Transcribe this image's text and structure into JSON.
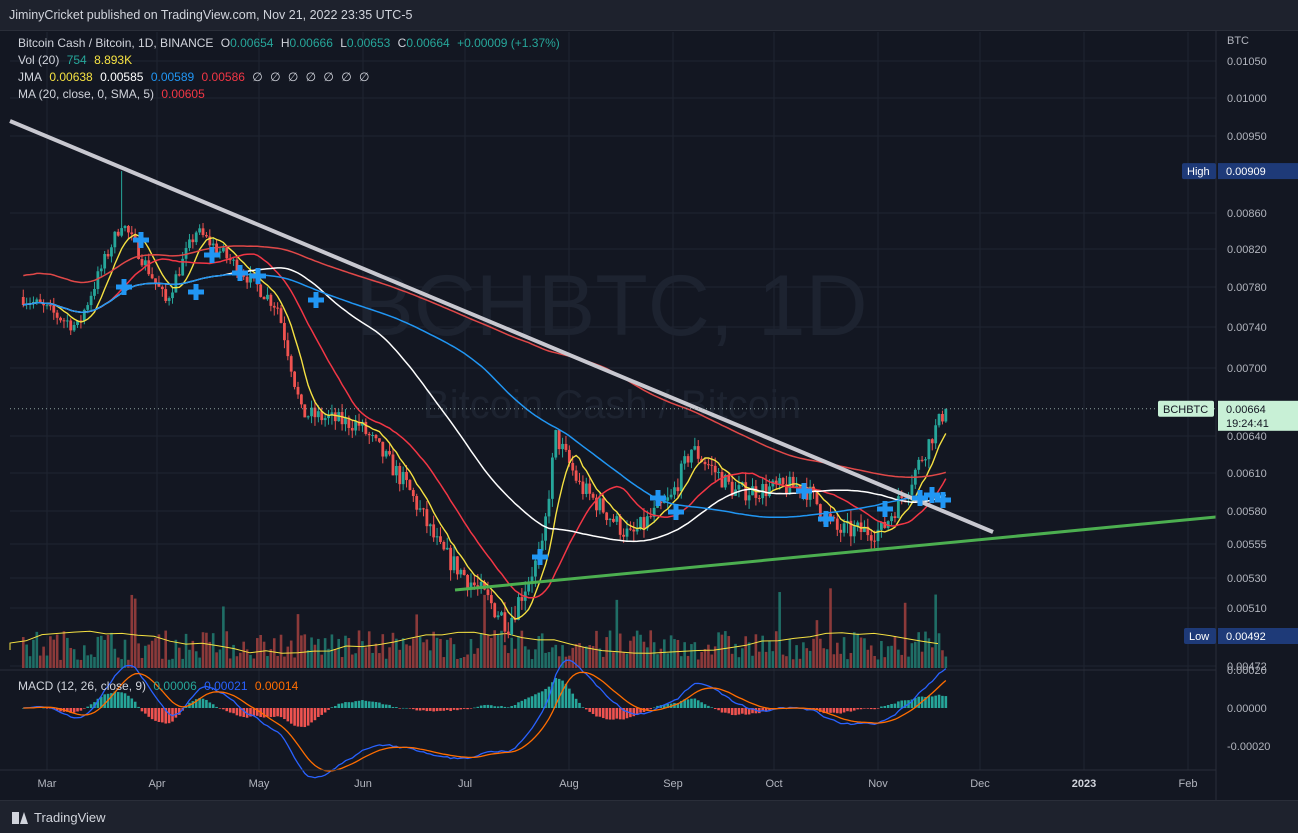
{
  "publisher": "JiminyCricket published on TradingView.com, Nov 21, 2022 23:35 UTC-5",
  "brand": "TradingView",
  "watermark": {
    "symbol": "BCHBTC, 1D",
    "name": "Bitcoin Cash / Bitcoin"
  },
  "legend": {
    "symbol_line": "Bitcoin Cash / Bitcoin, 1D, BINANCE",
    "o_label": "O",
    "o": "0.00654",
    "h_label": "H",
    "h": "0.00666",
    "l_label": "L",
    "l": "0.00653",
    "c_label": "C",
    "c": "0.00664",
    "change": "+0.00009 (+1.37%)",
    "vol_label": "Vol (20)",
    "vol_1": "754",
    "vol_2": "8.893K",
    "jma_label": "JMA",
    "jma_1": "0.00638",
    "jma_2": "0.00585",
    "jma_3": "0.00589",
    "jma_4": "0.00586",
    "jma_empty": "∅ ∅ ∅ ∅ ∅ ∅ ∅",
    "ma_label": "MA (20, close, 0, SMA, 5)",
    "ma_value": "0.00605",
    "macd_label": "MACD (12, 26, close, 9)",
    "macd_1": "0.00006",
    "macd_2": "0.00021",
    "macd_3": "0.00014"
  },
  "price_tags": {
    "high_label": "High",
    "high_value": "0.00909",
    "low_label": "Low",
    "low_value": "0.00492",
    "symbol_tag": "BCHBTC",
    "last_value": "0.00664",
    "countdown": "19:24:41"
  },
  "colors": {
    "up": "#26a69a",
    "down": "#ef5350",
    "jma_yellow": "#f5e142",
    "jma_white": "#ffffff",
    "jma_blue": "#2196f3",
    "jma_red": "#f23645",
    "trend_gray": "#c8c8d0",
    "trend_green": "#4caf50",
    "macd_line": "#2962ff",
    "signal_line": "#ff6d00"
  },
  "chart_data": {
    "type": "candlestick",
    "y_unit": "BTC",
    "y_ticks": [
      "0.01050",
      "0.01000",
      "0.00950",
      "0.00860",
      "0.00820",
      "0.00780",
      "0.00740",
      "0.00700",
      "0.00640",
      "0.00610",
      "0.00580",
      "0.00555",
      "0.00530",
      "0.00510",
      "0.00472"
    ],
    "macd_ticks": [
      "0.00020",
      "0.00000",
      "-0.00020"
    ],
    "x_ticks": [
      "Mar",
      "Apr",
      "May",
      "Jun",
      "Jul",
      "Aug",
      "Sep",
      "Oct",
      "Nov",
      "Dec",
      "2023",
      "Feb"
    ],
    "bold_tick": "2023",
    "high": 0.00909,
    "low": 0.00492,
    "last": 0.00664,
    "anchors": [
      {
        "date": "2022-02-22",
        "price": 0.0077
      },
      {
        "date": "2022-03-10",
        "price": 0.0074
      },
      {
        "date": "2022-03-23",
        "price": 0.0085
      },
      {
        "date": "2022-04-05",
        "price": 0.00765
      },
      {
        "date": "2022-04-14",
        "price": 0.0084
      },
      {
        "date": "2022-04-28",
        "price": 0.00795
      },
      {
        "date": "2022-05-08",
        "price": 0.0076
      },
      {
        "date": "2022-05-15",
        "price": 0.0066
      },
      {
        "date": "2022-06-01",
        "price": 0.0065
      },
      {
        "date": "2022-06-15",
        "price": 0.006
      },
      {
        "date": "2022-06-25",
        "price": 0.0055
      },
      {
        "date": "2022-07-15",
        "price": 0.005
      },
      {
        "date": "2022-07-25",
        "price": 0.0055
      },
      {
        "date": "2022-07-29",
        "price": 0.0064
      },
      {
        "date": "2022-08-05",
        "price": 0.006
      },
      {
        "date": "2022-08-20",
        "price": 0.0056
      },
      {
        "date": "2022-09-01",
        "price": 0.0059
      },
      {
        "date": "2022-09-07",
        "price": 0.0063
      },
      {
        "date": "2022-09-20",
        "price": 0.00595
      },
      {
        "date": "2022-10-10",
        "price": 0.006
      },
      {
        "date": "2022-10-20",
        "price": 0.00565
      },
      {
        "date": "2022-11-02",
        "price": 0.00565
      },
      {
        "date": "2022-11-10",
        "price": 0.006
      },
      {
        "date": "2022-11-21",
        "price": 0.00664
      }
    ]
  }
}
